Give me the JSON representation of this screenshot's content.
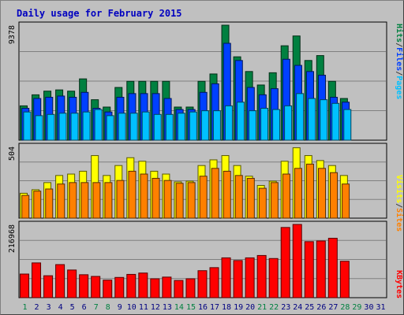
{
  "title": "Daily usage for February 2015",
  "chart_data": [
    {
      "type": "bar",
      "panel": "top",
      "max_label": "9378",
      "ylim": [
        0,
        9378
      ],
      "legend": [
        "Pages",
        "Files",
        "Hits"
      ],
      "legend_colors": [
        "#00c0ff",
        "#0040ff",
        "#008040"
      ],
      "days": [
        1,
        2,
        3,
        4,
        5,
        6,
        7,
        8,
        9,
        10,
        11,
        12,
        13,
        14,
        15,
        16,
        17,
        18,
        19,
        20,
        21,
        22,
        23,
        24,
        25,
        26,
        27,
        28,
        29,
        30,
        31
      ],
      "series": [
        {
          "name": "Hits",
          "color": "#008040",
          "values": [
            2800,
            3700,
            4000,
            4100,
            4000,
            5000,
            3300,
            2700,
            4300,
            4800,
            4800,
            4800,
            4800,
            2700,
            2700,
            4800,
            5400,
            9378,
            6800,
            5600,
            4500,
            5500,
            7700,
            8500,
            6500,
            6900,
            4800,
            3400,
            0,
            0,
            0
          ]
        },
        {
          "name": "Files",
          "color": "#0040ff",
          "values": [
            2600,
            3400,
            3500,
            3600,
            3500,
            3900,
            2600,
            2300,
            3500,
            3800,
            3800,
            3800,
            3400,
            2500,
            2500,
            3900,
            4600,
            7900,
            6500,
            4300,
            3700,
            4200,
            6600,
            6100,
            5600,
            5300,
            3500,
            3100,
            0,
            0,
            0
          ]
        },
        {
          "name": "Pages",
          "color": "#00c0ff",
          "values": [
            2300,
            2000,
            2100,
            2200,
            2200,
            2300,
            2500,
            2000,
            2200,
            2200,
            2300,
            2100,
            2100,
            2200,
            2300,
            2400,
            2400,
            2800,
            3100,
            2400,
            2600,
            2500,
            2800,
            3800,
            3400,
            3300,
            3000,
            2500,
            0,
            0,
            0
          ]
        }
      ]
    },
    {
      "type": "bar",
      "panel": "middle",
      "max_label": "504",
      "ylim": [
        0,
        504
      ],
      "legend": [
        "Sites",
        "/",
        "Visits"
      ],
      "legend_colors": [
        "#ff8000",
        "#404040",
        "#ffff00"
      ],
      "days": [
        1,
        2,
        3,
        4,
        5,
        6,
        7,
        8,
        9,
        10,
        11,
        12,
        13,
        14,
        15,
        16,
        17,
        18,
        19,
        20,
        21,
        22,
        23,
        24,
        25,
        26,
        27,
        28,
        29,
        30,
        31
      ],
      "series": [
        {
          "name": "Visits",
          "color": "#ffff00",
          "values": [
            175,
            200,
            250,
            300,
            310,
            330,
            440,
            300,
            370,
            425,
            400,
            330,
            310,
            255,
            260,
            370,
            410,
            440,
            370,
            295,
            230,
            260,
            400,
            495,
            440,
            405,
            370,
            300,
            0,
            0,
            0
          ]
        },
        {
          "name": "Sites",
          "color": "#ff8000",
          "values": [
            160,
            190,
            205,
            240,
            250,
            250,
            250,
            250,
            265,
            330,
            310,
            280,
            265,
            245,
            250,
            295,
            350,
            330,
            300,
            280,
            210,
            250,
            310,
            350,
            380,
            350,
            320,
            240,
            0,
            0,
            0
          ]
        }
      ]
    },
    {
      "type": "bar",
      "panel": "bottom",
      "max_label": "216968",
      "ylim": [
        0,
        216968
      ],
      "legend": [
        "KBytes"
      ],
      "legend_colors": [
        "#ff0000"
      ],
      "days": [
        1,
        2,
        3,
        4,
        5,
        6,
        7,
        8,
        9,
        10,
        11,
        12,
        13,
        14,
        15,
        16,
        17,
        18,
        19,
        20,
        21,
        22,
        23,
        24,
        25,
        26,
        27,
        28,
        29,
        30,
        31
      ],
      "series": [
        {
          "name": "KBytes",
          "color": "#ff0000",
          "values": [
            70000,
            103000,
            65000,
            98000,
            82000,
            68000,
            63000,
            52000,
            60000,
            69000,
            73000,
            56000,
            61000,
            51000,
            56000,
            80000,
            89000,
            118000,
            110000,
            118000,
            125000,
            116000,
            208000,
            216968,
            166000,
            168000,
            176000,
            108000,
            0,
            0,
            0
          ]
        }
      ]
    }
  ],
  "x_labels": [
    "1",
    "2",
    "3",
    "4",
    "5",
    "6",
    "7",
    "8",
    "9",
    "10",
    "11",
    "12",
    "13",
    "14",
    "15",
    "16",
    "17",
    "18",
    "19",
    "20",
    "21",
    "22",
    "23",
    "24",
    "25",
    "26",
    "27",
    "28",
    "29",
    "30",
    "31"
  ],
  "weekend_days": [
    1,
    7,
    8,
    14,
    15,
    21,
    22,
    28,
    29
  ],
  "colors": {
    "background": "#c0c0c0",
    "weekend_label": "#008040",
    "weekday_label": "#000080",
    "grid": "#808080"
  }
}
